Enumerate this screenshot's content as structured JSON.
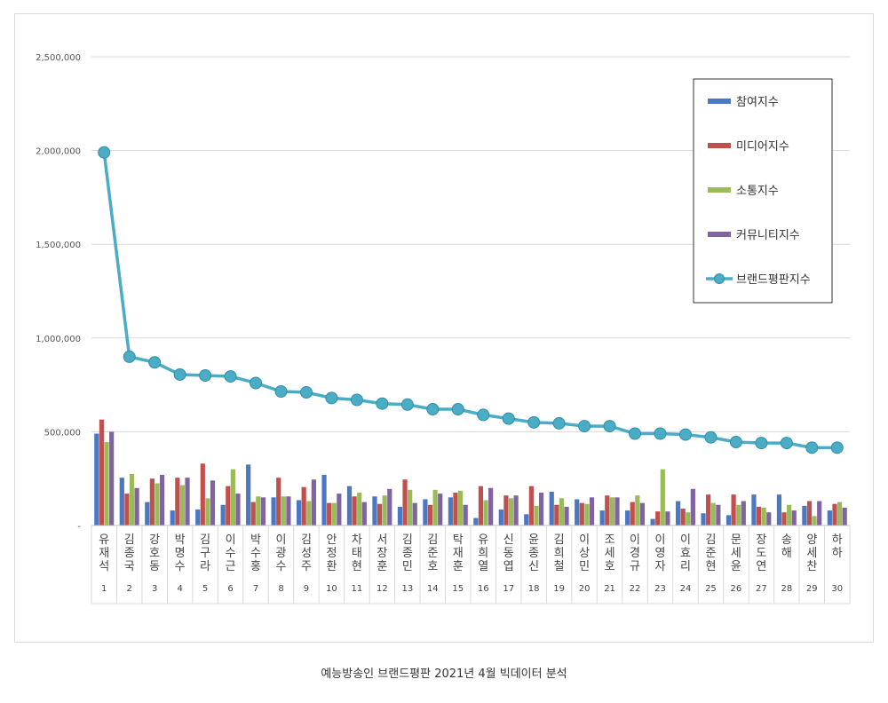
{
  "caption": "예능방송인 브랜드평판  2021년 4월 빅데이터 분석",
  "chart_data": {
    "type": "bar",
    "title": "",
    "xlabel": "",
    "ylabel": "",
    "ylim": [
      0,
      2500000
    ],
    "yticks": [
      0,
      500000,
      1000000,
      1500000,
      2000000,
      2500000
    ],
    "ytick_labels": [
      "-",
      "500,000",
      "1,000,000",
      "1,500,000",
      "2,000,000",
      "2,500,000"
    ],
    "grid": true,
    "legend_position": "top-right",
    "categories": [
      "유재석",
      "김종국",
      "강호동",
      "박명수",
      "김구라",
      "이수근",
      "박수홍",
      "이광수",
      "김성주",
      "안정환",
      "차태현",
      "서장훈",
      "김종민",
      "김준호",
      "탁재훈",
      "유희열",
      "신동엽",
      "윤종신",
      "김희철",
      "이상민",
      "조세호",
      "이경규",
      "이영자",
      "이효리",
      "김준현",
      "문세윤",
      "장도연",
      "송해",
      "양세찬",
      "하하"
    ],
    "ranks": [
      "1",
      "2",
      "3",
      "4",
      "5",
      "6",
      "7",
      "8",
      "9",
      "10",
      "11",
      "12",
      "13",
      "14",
      "15",
      "16",
      "17",
      "18",
      "19",
      "20",
      "21",
      "22",
      "23",
      "24",
      "25",
      "26",
      "27",
      "28",
      "29",
      "30"
    ],
    "series": [
      {
        "name": "참여지수",
        "kind": "bar",
        "color": "#4a78c2",
        "values": [
          490000,
          255000,
          125000,
          80000,
          85000,
          110000,
          325000,
          150000,
          135000,
          270000,
          210000,
          155000,
          100000,
          140000,
          150000,
          40000,
          85000,
          60000,
          180000,
          140000,
          80000,
          80000,
          35000,
          130000,
          65000,
          55000,
          165000,
          165000,
          105000,
          80000
        ]
      },
      {
        "name": "미디어지수",
        "kind": "bar",
        "color": "#c0504d",
        "values": [
          565000,
          170000,
          250000,
          255000,
          330000,
          210000,
          125000,
          255000,
          205000,
          120000,
          155000,
          115000,
          245000,
          110000,
          175000,
          210000,
          160000,
          210000,
          110000,
          120000,
          160000,
          125000,
          75000,
          90000,
          165000,
          165000,
          100000,
          70000,
          130000,
          115000
        ]
      },
      {
        "name": "소통지수",
        "kind": "bar",
        "color": "#9bbb59",
        "values": [
          445000,
          275000,
          225000,
          215000,
          145000,
          300000,
          155000,
          155000,
          130000,
          120000,
          175000,
          160000,
          190000,
          190000,
          185000,
          135000,
          145000,
          105000,
          145000,
          115000,
          150000,
          160000,
          300000,
          70000,
          120000,
          110000,
          95000,
          110000,
          50000,
          125000
        ]
      },
      {
        "name": "커뮤니티지수",
        "kind": "bar",
        "color": "#8064a2",
        "values": [
          500000,
          200000,
          270000,
          255000,
          240000,
          170000,
          150000,
          155000,
          245000,
          170000,
          125000,
          195000,
          120000,
          170000,
          110000,
          200000,
          160000,
          175000,
          100000,
          150000,
          150000,
          120000,
          75000,
          195000,
          110000,
          130000,
          70000,
          80000,
          130000,
          95000
        ]
      },
      {
        "name": "브랜드평판지수",
        "kind": "line",
        "color": "#4bacc6",
        "values": [
          1990000,
          900000,
          870000,
          805000,
          800000,
          795000,
          760000,
          715000,
          710000,
          680000,
          670000,
          650000,
          645000,
          620000,
          620000,
          590000,
          570000,
          550000,
          545000,
          530000,
          530000,
          490000,
          490000,
          485000,
          470000,
          445000,
          440000,
          440000,
          415000,
          415000
        ]
      }
    ]
  }
}
